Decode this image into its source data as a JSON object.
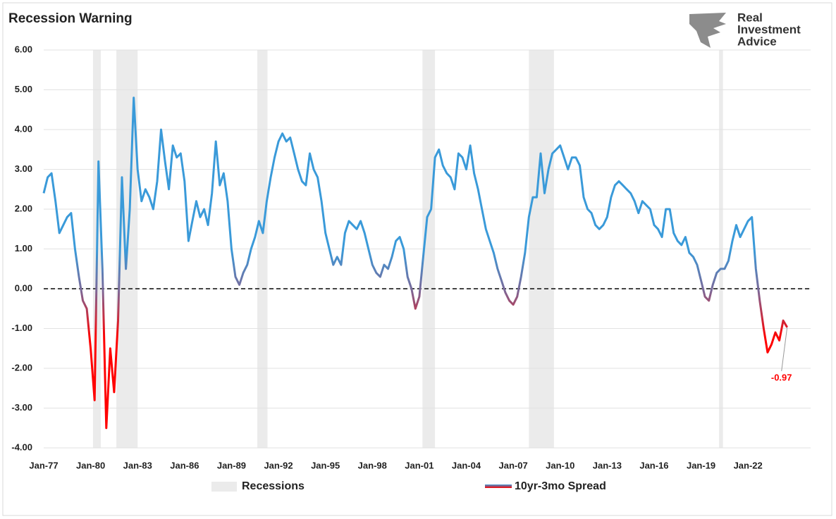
{
  "chart_data": {
    "type": "line",
    "title": "Recession Warning",
    "x": [
      1977,
      1977.25,
      1977.5,
      1977.75,
      1978,
      1978.25,
      1978.5,
      1978.75,
      1979,
      1979.25,
      1979.5,
      1979.75,
      1980,
      1980.25,
      1980.5,
      1980.75,
      1981,
      1981.25,
      1981.5,
      1981.75,
      1982,
      1982.25,
      1982.5,
      1982.75,
      1983,
      1983.25,
      1983.5,
      1983.75,
      1984,
      1984.25,
      1984.5,
      1984.75,
      1985,
      1985.25,
      1985.5,
      1985.75,
      1986,
      1986.25,
      1986.5,
      1986.75,
      1987,
      1987.25,
      1987.5,
      1987.75,
      1988,
      1988.25,
      1988.5,
      1988.75,
      1989,
      1989.25,
      1989.5,
      1989.75,
      1990,
      1990.25,
      1990.5,
      1990.75,
      1991,
      1991.25,
      1991.5,
      1991.75,
      1992,
      1992.25,
      1992.5,
      1992.75,
      1993,
      1993.25,
      1993.5,
      1993.75,
      1994,
      1994.25,
      1994.5,
      1994.75,
      1995,
      1995.25,
      1995.5,
      1995.75,
      1996,
      1996.25,
      1996.5,
      1996.75,
      1997,
      1997.25,
      1997.5,
      1997.75,
      1998,
      1998.25,
      1998.5,
      1998.75,
      1999,
      1999.25,
      1999.5,
      1999.75,
      2000,
      2000.25,
      2000.5,
      2000.75,
      2001,
      2001.25,
      2001.5,
      2001.75,
      2002,
      2002.25,
      2002.5,
      2002.75,
      2003,
      2003.25,
      2003.5,
      2003.75,
      2004,
      2004.25,
      2004.5,
      2004.75,
      2005,
      2005.25,
      2005.5,
      2005.75,
      2006,
      2006.25,
      2006.5,
      2006.75,
      2007,
      2007.25,
      2007.5,
      2007.75,
      2008,
      2008.25,
      2008.5,
      2008.75,
      2009,
      2009.25,
      2009.5,
      2009.75,
      2010,
      2010.25,
      2010.5,
      2010.75,
      2011,
      2011.25,
      2011.5,
      2011.75,
      2012,
      2012.25,
      2012.5,
      2012.75,
      2013,
      2013.25,
      2013.5,
      2013.75,
      2014,
      2014.25,
      2014.5,
      2014.75,
      2015,
      2015.25,
      2015.5,
      2015.75,
      2016,
      2016.25,
      2016.5,
      2016.75,
      2017,
      2017.25,
      2017.5,
      2017.75,
      2018,
      2018.25,
      2018.5,
      2018.75,
      2019,
      2019.25,
      2019.5,
      2019.75,
      2020,
      2020.25,
      2020.5,
      2020.75,
      2021,
      2021.25,
      2021.5,
      2021.75,
      2022,
      2022.25,
      2022.5,
      2022.75,
      2023,
      2023.25,
      2023.5,
      2023.75,
      2024,
      2024.25,
      2024.5
    ],
    "series": [
      {
        "name": "10yr-3mo Spread",
        "color": "#3a9ad9",
        "negative_color": "#ff0000",
        "values": [
          2.4,
          2.8,
          2.9,
          2.2,
          1.4,
          1.6,
          1.8,
          1.9,
          1.0,
          0.3,
          -0.3,
          -0.5,
          -1.5,
          -2.8,
          3.2,
          0.5,
          -3.5,
          -1.5,
          -2.6,
          -0.8,
          2.8,
          0.5,
          2.0,
          4.8,
          3.0,
          2.2,
          2.5,
          2.3,
          2.0,
          2.7,
          4.0,
          3.2,
          2.5,
          3.6,
          3.3,
          3.4,
          2.7,
          1.2,
          1.7,
          2.2,
          1.8,
          2.0,
          1.6,
          2.4,
          3.7,
          2.6,
          2.9,
          2.2,
          1.0,
          0.3,
          0.1,
          0.4,
          0.6,
          1.0,
          1.3,
          1.7,
          1.4,
          2.2,
          2.8,
          3.3,
          3.7,
          3.9,
          3.7,
          3.8,
          3.4,
          3.0,
          2.7,
          2.6,
          3.4,
          3.0,
          2.8,
          2.2,
          1.4,
          1.0,
          0.6,
          0.8,
          0.6,
          1.4,
          1.7,
          1.6,
          1.5,
          1.7,
          1.4,
          1.0,
          0.6,
          0.4,
          0.3,
          0.6,
          0.5,
          0.8,
          1.2,
          1.3,
          1.0,
          0.3,
          0.0,
          -0.5,
          -0.2,
          0.8,
          1.8,
          2.0,
          3.3,
          3.5,
          3.1,
          2.9,
          2.8,
          2.5,
          3.4,
          3.3,
          3.0,
          3.6,
          2.9,
          2.5,
          2.0,
          1.5,
          1.2,
          0.9,
          0.5,
          0.2,
          -0.1,
          -0.3,
          -0.4,
          -0.2,
          0.3,
          0.9,
          1.8,
          2.3,
          2.3,
          3.4,
          2.4,
          3.0,
          3.4,
          3.5,
          3.6,
          3.3,
          3.0,
          3.3,
          3.3,
          3.1,
          2.3,
          2.0,
          1.9,
          1.6,
          1.5,
          1.6,
          1.8,
          2.3,
          2.6,
          2.7,
          2.6,
          2.5,
          2.4,
          2.2,
          1.9,
          2.2,
          2.1,
          2.0,
          1.6,
          1.5,
          1.3,
          2.0,
          2.0,
          1.4,
          1.2,
          1.1,
          1.3,
          0.9,
          0.8,
          0.6,
          0.2,
          -0.2,
          -0.3,
          0.1,
          0.4,
          0.5,
          0.5,
          0.7,
          1.2,
          1.6,
          1.3,
          1.5,
          1.7,
          1.8,
          0.5,
          -0.3,
          -1.0,
          -1.6,
          -1.4,
          -1.1,
          -1.3,
          -0.8,
          -0.97
        ]
      }
    ],
    "recessions": {
      "name": "Recessions",
      "color": "#ebebeb",
      "ranges": [
        [
          1980.15,
          1980.65
        ],
        [
          1981.64,
          1983.0
        ],
        [
          1990.65,
          1991.3
        ],
        [
          2001.2,
          2002.0
        ],
        [
          2008.0,
          2009.6
        ],
        [
          2020.15,
          2020.4
        ]
      ]
    },
    "reference_line": 0,
    "xlim": [
      1977,
      2026
    ],
    "xticks": [
      {
        "value": 1977,
        "label": "Jan-77"
      },
      {
        "value": 1980,
        "label": "Jan-80"
      },
      {
        "value": 1983,
        "label": "Jan-83"
      },
      {
        "value": 1986,
        "label": "Jan-86"
      },
      {
        "value": 1989,
        "label": "Jan-89"
      },
      {
        "value": 1992,
        "label": "Jan-92"
      },
      {
        "value": 1995,
        "label": "Jan-95"
      },
      {
        "value": 1998,
        "label": "Jan-98"
      },
      {
        "value": 2001,
        "label": "Jan-01"
      },
      {
        "value": 2004,
        "label": "Jan-04"
      },
      {
        "value": 2007,
        "label": "Jan-07"
      },
      {
        "value": 2010,
        "label": "Jan-10"
      },
      {
        "value": 2013,
        "label": "Jan-13"
      },
      {
        "value": 2016,
        "label": "Jan-16"
      },
      {
        "value": 2019,
        "label": "Jan-19"
      },
      {
        "value": 2022,
        "label": "Jan-22"
      }
    ],
    "ylim": [
      -4,
      6
    ],
    "yticks": [
      {
        "value": 6,
        "label": "6.00"
      },
      {
        "value": 5,
        "label": "5.00"
      },
      {
        "value": 4,
        "label": "4.00"
      },
      {
        "value": 3,
        "label": "3.00"
      },
      {
        "value": 2,
        "label": "2.00"
      },
      {
        "value": 1,
        "label": "1.00"
      },
      {
        "value": 0,
        "label": "0.00"
      },
      {
        "value": -1,
        "label": "-1.00"
      },
      {
        "value": -2,
        "label": "-2.00"
      },
      {
        "value": -3,
        "label": "-3.00"
      },
      {
        "value": -4,
        "label": "-4.00"
      }
    ],
    "grid": true,
    "legend": "bottom"
  },
  "brand": {
    "lines": [
      "Real",
      "Investment",
      "Advice"
    ]
  }
}
